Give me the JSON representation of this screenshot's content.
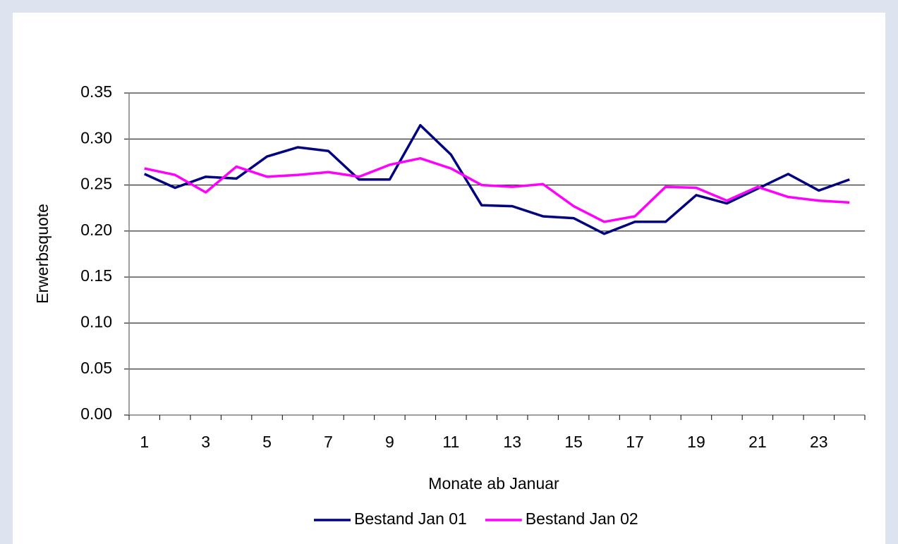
{
  "chart_data": {
    "type": "line",
    "x_label": "Monate ab Januar",
    "y_label": "Erwerbsquote",
    "categories": [
      "1",
      null,
      "3",
      null,
      "5",
      null,
      "7",
      null,
      "9",
      null,
      "11",
      null,
      "13",
      null,
      "15",
      null,
      "17",
      null,
      "19",
      null,
      "21",
      null,
      "23",
      null
    ],
    "series": [
      {
        "name": "Bestand Jan 01",
        "color": "#000080",
        "values": [
          0.262,
          0.247,
          0.259,
          0.257,
          0.281,
          0.291,
          0.287,
          0.256,
          0.256,
          0.315,
          0.283,
          0.228,
          0.227,
          0.216,
          0.214,
          0.197,
          0.21,
          0.21,
          0.239,
          0.23,
          0.246,
          0.262,
          0.244,
          0.256
        ]
      },
      {
        "name": "Bestand Jan 02",
        "color": "#ff00ff",
        "values": [
          0.268,
          0.261,
          0.242,
          0.27,
          0.259,
          0.261,
          0.264,
          0.259,
          0.272,
          0.279,
          0.268,
          0.25,
          0.248,
          0.251,
          0.227,
          0.21,
          0.216,
          0.248,
          0.247,
          0.233,
          0.248,
          0.237,
          0.233,
          0.231
        ]
      }
    ],
    "ylim": [
      0,
      0.35
    ],
    "yticks": [
      {
        "value": 0,
        "label": "0.00"
      },
      {
        "value": 0.05,
        "label": "0.05"
      },
      {
        "value": 0.1,
        "label": "0.10"
      },
      {
        "value": 0.15,
        "label": "0.15"
      },
      {
        "value": 0.2,
        "label": "0.20"
      },
      {
        "value": 0.25,
        "label": "0.25"
      },
      {
        "value": 0.3,
        "label": "0.30"
      },
      {
        "value": 0.35,
        "label": "0.35"
      }
    ],
    "grid": true,
    "legend": "bottom"
  }
}
